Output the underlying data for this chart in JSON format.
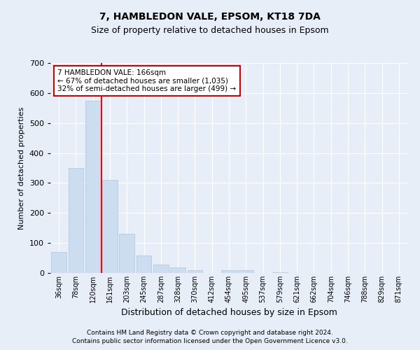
{
  "title": "7, HAMBLEDON VALE, EPSOM, KT18 7DA",
  "subtitle": "Size of property relative to detached houses in Epsom",
  "xlabel": "Distribution of detached houses by size in Epsom",
  "ylabel": "Number of detached properties",
  "bar_color": "#ccddf0",
  "bar_edge_color": "#aac4e0",
  "categories": [
    "36sqm",
    "78sqm",
    "120sqm",
    "161sqm",
    "203sqm",
    "245sqm",
    "287sqm",
    "328sqm",
    "370sqm",
    "412sqm",
    "454sqm",
    "495sqm",
    "537sqm",
    "579sqm",
    "621sqm",
    "662sqm",
    "704sqm",
    "746sqm",
    "788sqm",
    "829sqm",
    "871sqm"
  ],
  "values": [
    70,
    350,
    575,
    310,
    130,
    58,
    28,
    18,
    10,
    0,
    10,
    9,
    0,
    3,
    0,
    0,
    0,
    0,
    0,
    0,
    0
  ],
  "ylim": [
    0,
    700
  ],
  "yticks": [
    0,
    100,
    200,
    300,
    400,
    500,
    600,
    700
  ],
  "property_line_x": 2.5,
  "annotation_line1": "7 HAMBLEDON VALE: 166sqm",
  "annotation_line2": "← 67% of detached houses are smaller (1,035)",
  "annotation_line3": "32% of semi-detached houses are larger (499) →",
  "annotation_box_color": "#ffffff",
  "annotation_box_edge_color": "#cc0000",
  "footer_line1": "Contains HM Land Registry data © Crown copyright and database right 2024.",
  "footer_line2": "Contains public sector information licensed under the Open Government Licence v3.0.",
  "background_color": "#e8eef8",
  "plot_bg_color": "#e8eef8",
  "grid_color": "#ffffff",
  "title_fontsize": 10,
  "subtitle_fontsize": 9,
  "ylabel_fontsize": 8,
  "xlabel_fontsize": 9
}
